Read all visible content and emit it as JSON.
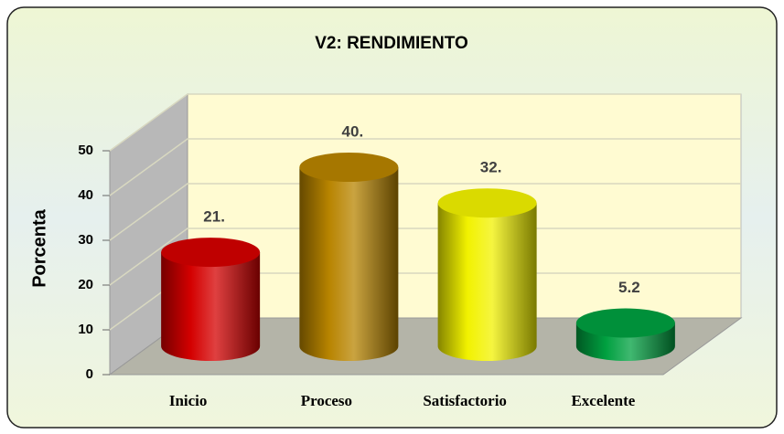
{
  "chart_data": {
    "type": "bar3d",
    "title": "V2: RENDIMIENTO",
    "y_label": "Porcenta",
    "categories": [
      "Inicio",
      "Proceso",
      "Satisfactorio",
      "Excelente"
    ],
    "series": [
      {
        "values": [
          21,
          40,
          32,
          5.2
        ],
        "value_labels": [
          "21.",
          "40.",
          "32.",
          "5.2"
        ],
        "colors": [
          "#d40000",
          "#b88400",
          "#f2f200",
          "#00a040"
        ]
      }
    ],
    "ylim": [
      0,
      50
    ],
    "yticks": [
      0,
      10,
      20,
      30,
      40,
      50
    ],
    "grid": true
  }
}
